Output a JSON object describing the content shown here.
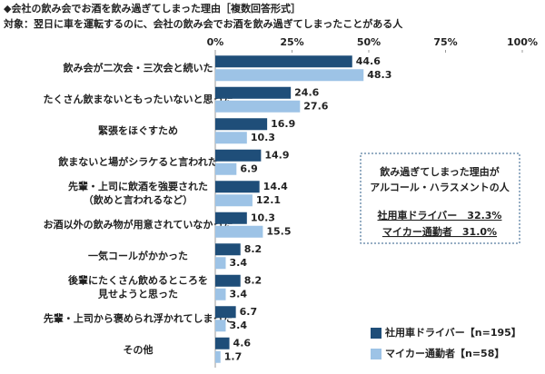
{
  "chart_data": {
    "type": "hbar",
    "title": "◆会社の飲み会でお酒を飲み過ぎてしまった理由［複数回答形式］",
    "subtitle": "対象：翌日に車を運転するのに、会社の飲み会でお酒を飲み過ぎてしまったことがある人",
    "categories": [
      [
        "飲み会が二次会・三次会と続いた"
      ],
      [
        "たくさん飲まないともったいないと思った"
      ],
      [
        "緊張をほぐすため"
      ],
      [
        "飲まないと場がシラケると言われた"
      ],
      [
        "先輩・上司に飲酒を強要された",
        "（飲めと言われるなど）"
      ],
      [
        "お酒以外の飲み物が用意されていなかった"
      ],
      [
        "一気コールがかかった"
      ],
      [
        "後輩にたくさん飲めるところを",
        "見せようと思った"
      ],
      [
        "先輩・上司から褒められ浮かれてしまった"
      ],
      [
        "その他"
      ]
    ],
    "series": [
      {
        "name": "社用車ドライバー【n=195】",
        "color": "#1f4e79",
        "values": [
          44.6,
          24.6,
          16.9,
          14.9,
          14.4,
          10.3,
          8.2,
          8.2,
          6.7,
          4.6
        ]
      },
      {
        "name": "マイカー通勤者【n=58】",
        "color": "#9dc3e6",
        "values": [
          48.3,
          27.6,
          10.3,
          6.9,
          12.1,
          15.5,
          3.4,
          3.4,
          3.4,
          1.7
        ]
      }
    ],
    "xlim": [
      0,
      100
    ],
    "xticks": [
      {
        "value": 0,
        "label": "0%"
      },
      {
        "value": 25,
        "label": "25%"
      },
      {
        "value": 50,
        "label": "50%"
      },
      {
        "value": 75,
        "label": "75%"
      },
      {
        "value": 100,
        "label": "100%"
      }
    ],
    "annotation": [
      "飲み過ぎてしまった理由が",
      "アルコール・ハラスメントの人",
      "社用車ドライバー　32.3%",
      "マイカー通勤者　31.0%"
    ]
  }
}
